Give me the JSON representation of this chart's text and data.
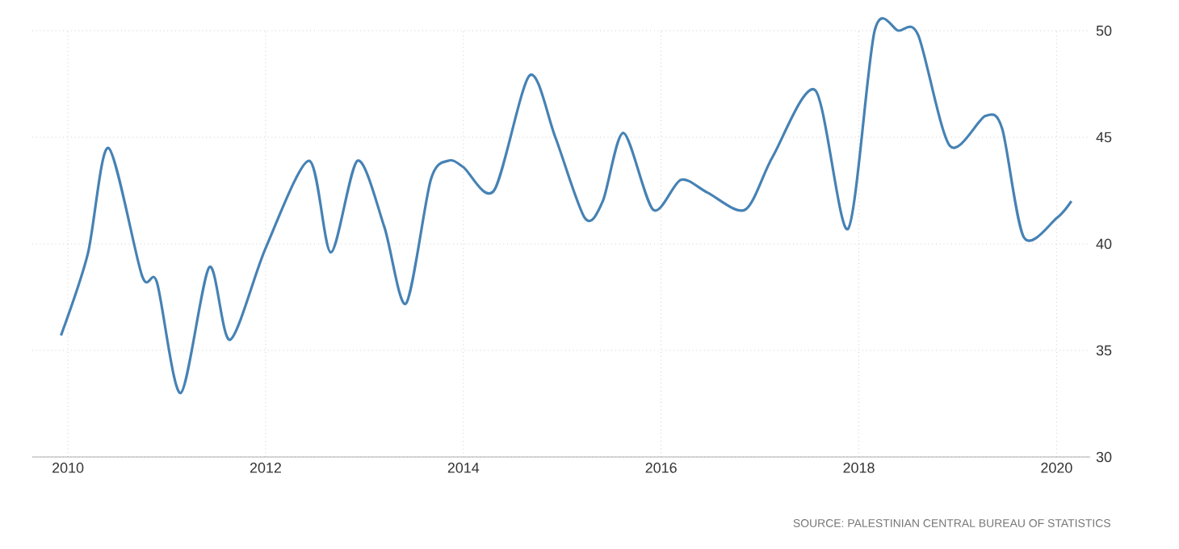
{
  "chart_data": {
    "type": "line",
    "x": [
      2009.93,
      2010.2,
      2010.41,
      2010.75,
      2010.9,
      2011.14,
      2011.43,
      2011.64,
      2012.0,
      2012.44,
      2012.66,
      2012.93,
      2013.2,
      2013.42,
      2013.67,
      2013.85,
      2014.0,
      2014.31,
      2014.67,
      2014.93,
      2015.23,
      2015.41,
      2015.62,
      2015.92,
      2016.2,
      2016.47,
      2016.85,
      2017.13,
      2017.56,
      2017.89,
      2018.16,
      2018.4,
      2018.6,
      2018.92,
      2019.28,
      2019.45,
      2019.67,
      2020.0,
      2020.15
    ],
    "series": [
      {
        "color": "#4682b4",
        "values": [
          35.7,
          39.5,
          44.5,
          38.5,
          38.2,
          33.0,
          38.9,
          35.5,
          39.8,
          43.9,
          39.6,
          43.9,
          40.8,
          37.2,
          43.0,
          43.9,
          43.6,
          42.5,
          47.9,
          45.0,
          41.2,
          42.0,
          45.2,
          41.6,
          43.0,
          42.4,
          41.6,
          44.1,
          47.2,
          40.7,
          50.0,
          50.0,
          49.8,
          44.6,
          46.0,
          45.4,
          40.3,
          41.2,
          42.0
        ]
      }
    ],
    "xlim": [
      2009.64,
      2020.34
    ],
    "ylim": [
      30,
      50
    ],
    "xticks": [
      2010,
      2012,
      2014,
      2016,
      2018,
      2020
    ],
    "yticks": [
      30,
      35,
      40,
      45,
      50
    ],
    "grid": true,
    "marker": "none",
    "line_style": "solid",
    "annotations": [
      "SOURCE: PALESTINIAN CENTRAL BUREAU OF STATISTICS"
    ]
  }
}
